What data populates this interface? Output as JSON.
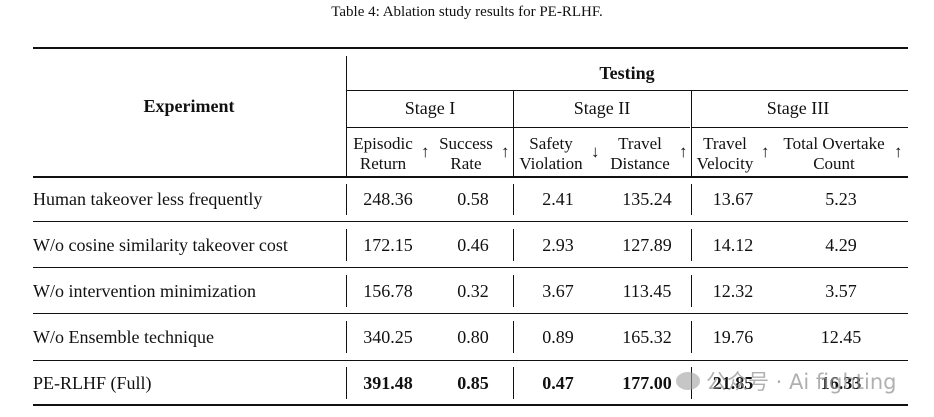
{
  "caption": "Table 4: Ablation study results for PE-RLHF.",
  "header": {
    "experiment": "Experiment",
    "testing": "Testing",
    "stages": [
      "Stage I",
      "Stage II",
      "Stage III"
    ],
    "metrics": [
      {
        "line1": "Episodic",
        "line2": "Return",
        "arrow": "↑"
      },
      {
        "line1": "Success",
        "line2": "Rate",
        "arrow": "↑"
      },
      {
        "line1": "Safety",
        "line2": "Violation",
        "arrow": "↓"
      },
      {
        "line1": "Travel",
        "line2": "Distance",
        "arrow": "↑"
      },
      {
        "line1": "Travel",
        "line2": "Velocity",
        "arrow": "↑"
      },
      {
        "line1": "Total Overtake",
        "line2": "Count",
        "arrow": "↑"
      }
    ]
  },
  "rows": [
    {
      "name": "Human takeover less frequently",
      "values": [
        "248.36",
        "0.58",
        "2.41",
        "135.24",
        "13.67",
        "5.23"
      ]
    },
    {
      "name": "W/o cosine similarity takeover cost",
      "values": [
        "172.15",
        "0.46",
        "2.93",
        "127.89",
        "14.12",
        "4.29"
      ]
    },
    {
      "name": "W/o intervention minimization",
      "values": [
        "156.78",
        "0.32",
        "3.67",
        "113.45",
        "12.32",
        "3.57"
      ]
    },
    {
      "name": "W/o Ensemble technique",
      "values": [
        "340.25",
        "0.80",
        "0.89",
        "165.32",
        "19.76",
        "12.45"
      ]
    },
    {
      "name": "PE-RLHF (Full)",
      "values": [
        "391.48",
        "0.85",
        "0.47",
        "177.00",
        "21.85",
        "16.33"
      ]
    }
  ],
  "watermark": "公众号 · Ai fighting"
}
